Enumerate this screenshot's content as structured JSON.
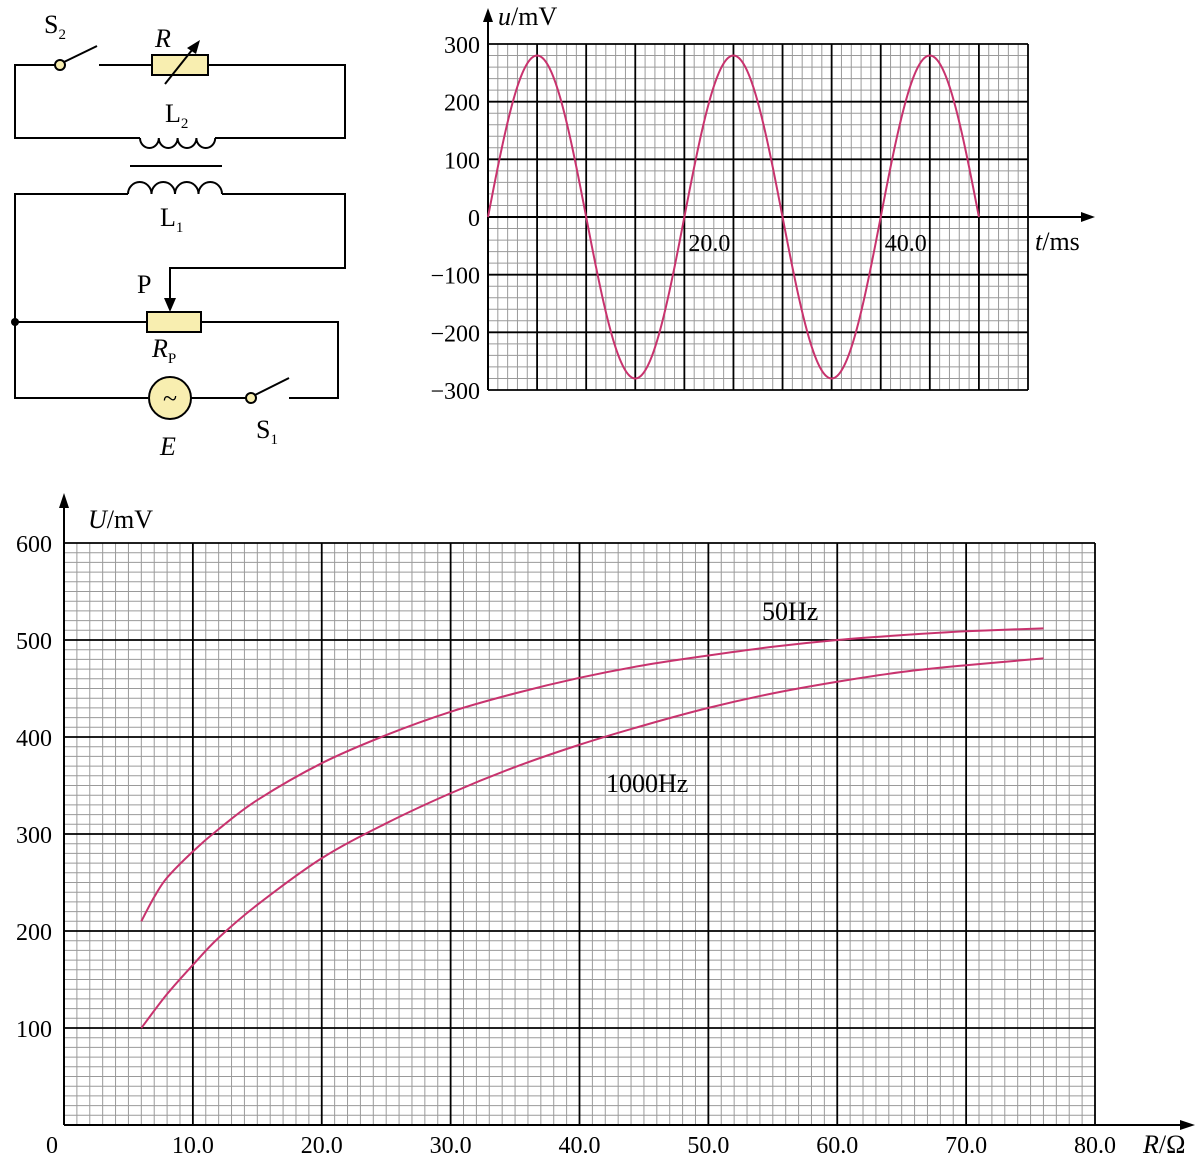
{
  "circuit": {
    "switch_2": {
      "main": "S",
      "sub": "2"
    },
    "rheostat": "R",
    "coil_2": {
      "main": "L",
      "sub": "2"
    },
    "coil_1": {
      "main": "L",
      "sub": "1"
    },
    "slider": "P",
    "potentiometer": {
      "main": "R",
      "sub": "P"
    },
    "source": "E",
    "source_symbol": "~",
    "switch_1": {
      "main": "S",
      "sub": "1"
    },
    "colors": {
      "resistor_fill": "#f8eeb0",
      "source_fill": "#f8eeb0",
      "wire": "#000000"
    }
  },
  "chart_data": [
    {
      "type": "line",
      "x_axis_label": {
        "var": "t",
        "unit": "/ms"
      },
      "y_axis_label": {
        "var": "u",
        "unit": "/mV"
      },
      "xlim": [
        0,
        55
      ],
      "ylim": [
        -300,
        300
      ],
      "x_tick_labels": [
        "20.0",
        "40.0"
      ],
      "x_tick_values": [
        20,
        40
      ],
      "y_tick_labels": [
        "300",
        "200",
        "100",
        "0",
        "−100",
        "−200",
        "−300"
      ],
      "y_tick_values": [
        300,
        200,
        100,
        0,
        -100,
        -200,
        -300
      ],
      "grid": true,
      "series": [
        {
          "amplitude": 280,
          "period": 20,
          "x_start": 0,
          "x_end": 50,
          "phase_peak_at": 5,
          "color": "#c8336e"
        }
      ]
    },
    {
      "type": "line",
      "x_axis_label": {
        "var": "R",
        "unit": "/Ω"
      },
      "y_axis_label": {
        "var": "U",
        "unit": "/mV"
      },
      "xlim": [
        0,
        80
      ],
      "ylim": [
        0,
        600
      ],
      "x_tick_labels": [
        "0",
        "10.0",
        "20.0",
        "30.0",
        "40.0",
        "50.0",
        "60.0",
        "70.0",
        "80.0"
      ],
      "x_tick_values": [
        0,
        10,
        20,
        30,
        40,
        50,
        60,
        70,
        80
      ],
      "y_tick_labels": [
        "600",
        "500",
        "400",
        "300",
        "200",
        "100"
      ],
      "y_tick_values": [
        600,
        500,
        400,
        300,
        200,
        100
      ],
      "grid": true,
      "series": [
        {
          "name": "50Hz",
          "color": "#c8336e",
          "x": [
            6,
            7,
            8,
            10,
            12,
            15,
            20,
            25,
            30,
            35,
            40,
            45,
            50,
            55,
            60,
            65,
            70,
            76
          ],
          "y": [
            210,
            235,
            255,
            282,
            305,
            335,
            373,
            402,
            426,
            445,
            461,
            474,
            484,
            493,
            500,
            505,
            509,
            512
          ]
        },
        {
          "name": "1000Hz",
          "color": "#c8336e",
          "x": [
            6,
            8,
            10,
            12,
            15,
            20,
            25,
            30,
            35,
            40,
            45,
            50,
            55,
            60,
            65,
            70,
            76
          ],
          "y": [
            100,
            135,
            165,
            193,
            227,
            275,
            311,
            342,
            369,
            392,
            412,
            430,
            445,
            457,
            467,
            474,
            481
          ]
        }
      ]
    }
  ]
}
